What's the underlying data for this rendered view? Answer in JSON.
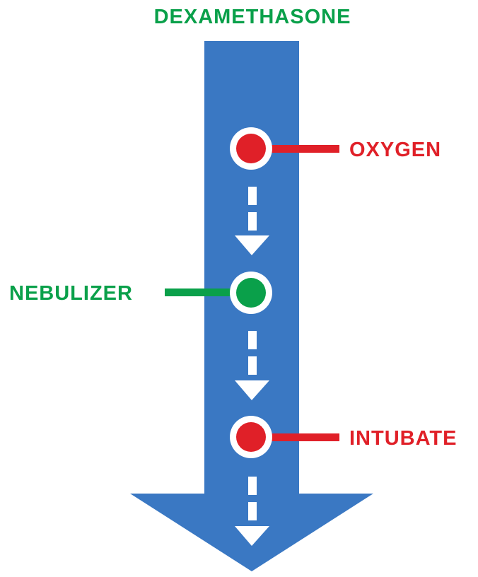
{
  "diagram": {
    "title": "DEXAMETHASONE",
    "steps": [
      {
        "label": "OXYGEN",
        "side": "right"
      },
      {
        "label": "NEBULIZER",
        "side": "left"
      },
      {
        "label": "INTUBATE",
        "side": "right"
      }
    ]
  },
  "colors": {
    "arrow": "#3a78c3",
    "red": "#e02028",
    "green": "#0aa04a",
    "white": "#ffffff"
  }
}
